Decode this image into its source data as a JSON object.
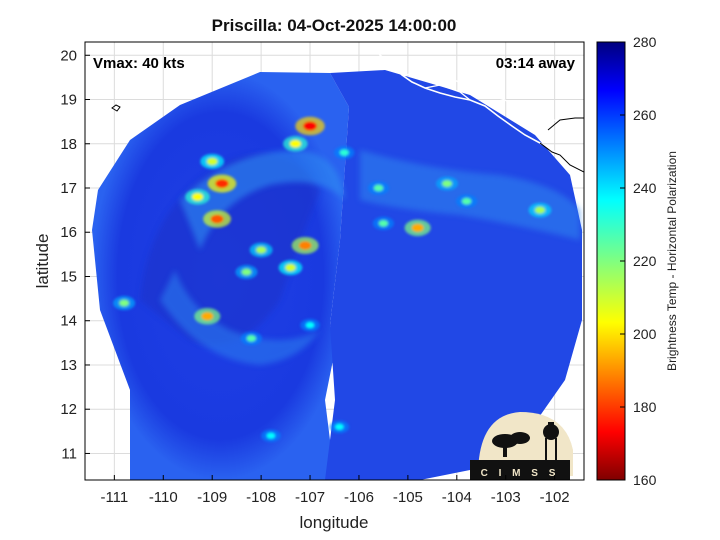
{
  "chart_data": {
    "type": "heatmap",
    "title": "Priscilla: 04-Oct-2025 14:00:00",
    "xlabel": "longitude",
    "ylabel": "latitude",
    "xlim": [
      -111.6,
      -101.4
    ],
    "ylim": [
      10.4,
      20.3
    ],
    "x_ticks": [
      -111,
      -110,
      -109,
      -108,
      -107,
      -106,
      -105,
      -104,
      -103,
      -102
    ],
    "x_tick_labels": [
      "-111",
      "-110",
      "-109",
      "-108",
      "-107",
      "-106",
      "-105",
      "-104",
      "-103",
      "-102"
    ],
    "y_ticks": [
      11,
      12,
      13,
      14,
      15,
      16,
      17,
      18,
      19,
      20
    ],
    "y_tick_labels": [
      "11",
      "12",
      "13",
      "14",
      "15",
      "16",
      "17",
      "18",
      "19",
      "20"
    ],
    "grid": true,
    "annotations": {
      "vmax": "Vmax: 40 kts",
      "time_away": "03:14 away"
    },
    "colorbar": {
      "label": "Brightness Temp - Horizontal Polarization",
      "min": 160,
      "max": 280,
      "ticks": [
        160,
        180,
        200,
        220,
        240,
        260,
        280
      ],
      "tick_labels": [
        "160",
        "180",
        "200",
        "220",
        "240",
        "260",
        "280"
      ],
      "colormap": "jet"
    },
    "swath": {
      "center_lon": -106.6,
      "center_lat": 15.4,
      "radius_deg": 5.0
    },
    "features": [
      {
        "lon": -108.8,
        "lat": 17.1,
        "tb": 180
      },
      {
        "lon": -108.9,
        "lat": 16.3,
        "tb": 185
      },
      {
        "lon": -109.3,
        "lat": 16.8,
        "tb": 205
      },
      {
        "lon": -109.0,
        "lat": 17.6,
        "tb": 210
      },
      {
        "lon": -107.3,
        "lat": 18.0,
        "tb": 205
      },
      {
        "lon": -107.0,
        "lat": 18.4,
        "tb": 175
      },
      {
        "lon": -107.1,
        "lat": 15.7,
        "tb": 190
      },
      {
        "lon": -108.0,
        "lat": 15.6,
        "tb": 215
      },
      {
        "lon": -107.4,
        "lat": 15.2,
        "tb": 210
      },
      {
        "lon": -108.3,
        "lat": 15.1,
        "tb": 220
      },
      {
        "lon": -109.1,
        "lat": 14.1,
        "tb": 195
      },
      {
        "lon": -110.8,
        "lat": 14.4,
        "tb": 220
      },
      {
        "lon": -104.8,
        "lat": 16.1,
        "tb": 195
      },
      {
        "lon": -105.5,
        "lat": 16.2,
        "tb": 225
      },
      {
        "lon": -104.2,
        "lat": 17.1,
        "tb": 220
      },
      {
        "lon": -103.8,
        "lat": 16.7,
        "tb": 225
      },
      {
        "lon": -102.3,
        "lat": 16.5,
        "tb": 215
      },
      {
        "lon": -105.6,
        "lat": 17.0,
        "tb": 225
      },
      {
        "lon": -106.3,
        "lat": 17.8,
        "tb": 230
      },
      {
        "lon": -108.2,
        "lat": 13.6,
        "tb": 225
      },
      {
        "lon": -107.8,
        "lat": 11.4,
        "tb": 235
      },
      {
        "lon": -106.4,
        "lat": 11.6,
        "tb": 235
      },
      {
        "lon": -107.0,
        "lat": 13.9,
        "tb": 235
      }
    ]
  },
  "logo": {
    "text": "CIMSS"
  }
}
